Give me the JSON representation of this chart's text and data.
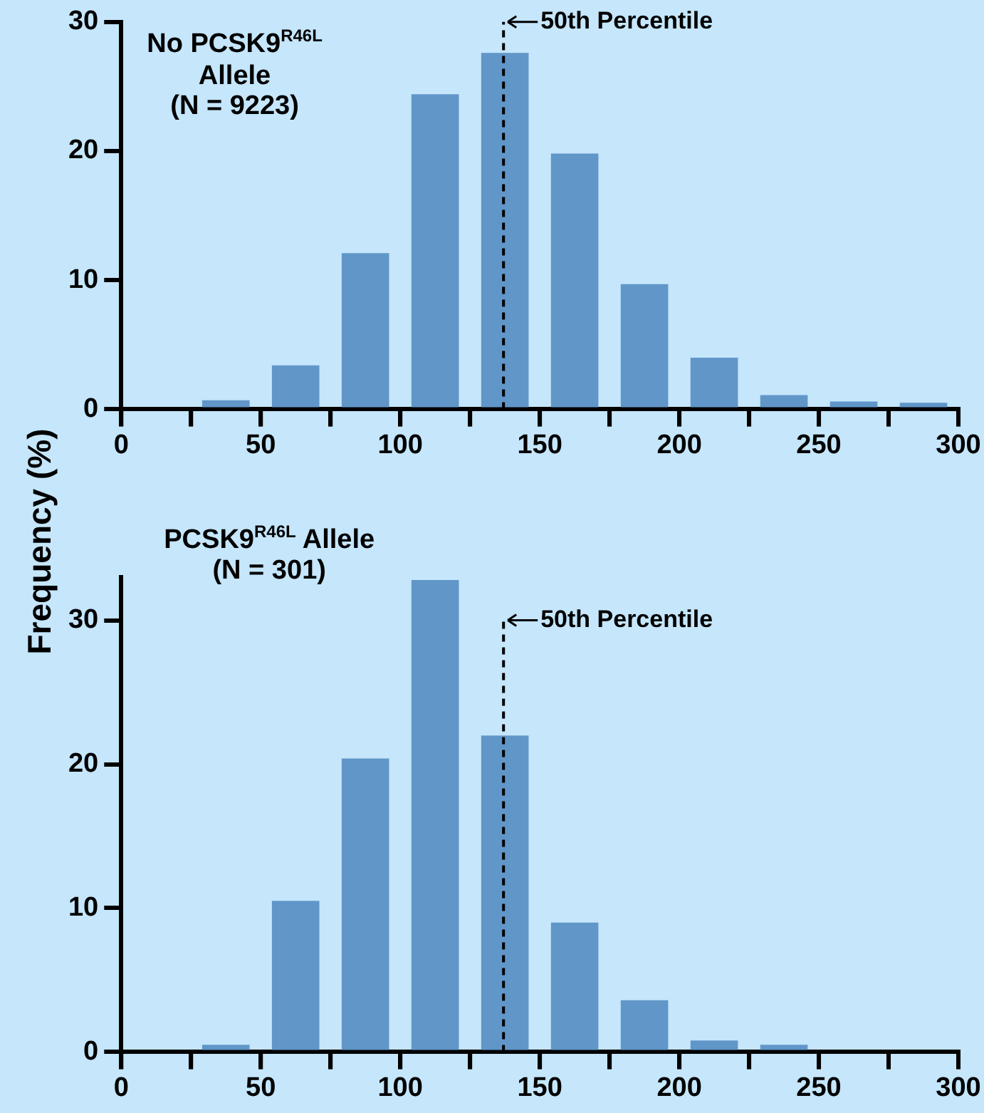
{
  "chart_data": [
    {
      "type": "histogram",
      "title": "No PCSK9$^{R46L}$\nAllele\n(N = 9223)",
      "ylabel": "Frequency (%)",
      "bins": [
        25,
        50,
        75,
        100,
        125,
        150,
        175,
        200,
        225,
        250,
        275,
        300
      ],
      "values": [
        0.7,
        3.4,
        12.1,
        24.4,
        27.6,
        19.8,
        9.7,
        4.0,
        1.1,
        0.6,
        0.5
      ],
      "color": "#6196c9",
      "xlim": [
        0,
        300
      ],
      "xticks": [
        0,
        {
          "value": 25,
          "label": null
        },
        50,
        {
          "value": 75,
          "label": null
        },
        100,
        {
          "value": 125,
          "label": null
        },
        150,
        {
          "value": 175,
          "label": null
        },
        200,
        {
          "value": 225,
          "label": null
        },
        250,
        {
          "value": 275,
          "label": null
        },
        300
      ],
      "ylim": [
        0,
        30
      ],
      "yticks": [
        0,
        10,
        20,
        30
      ],
      "grid": false,
      "legend": false,
      "ref_lines": [
        {
          "axis": "x",
          "value": 137,
          "label": "50th Percentile",
          "line_style": "dashed"
        }
      ]
    },
    {
      "type": "histogram",
      "title": "PCSK9$^{R46L}$ Allele\n(N = 301)",
      "bins": [
        25,
        50,
        75,
        100,
        125,
        150,
        175,
        200,
        225,
        250
      ],
      "values": [
        0.5,
        10.5,
        20.4,
        32.8,
        22.0,
        9.0,
        3.6,
        0.8,
        0.5
      ],
      "color": "#6196c9",
      "xlim": [
        0,
        300
      ],
      "xticks": [
        0,
        {
          "value": 25,
          "label": null
        },
        50,
        {
          "value": 75,
          "label": null
        },
        100,
        {
          "value": 125,
          "label": null
        },
        150,
        {
          "value": 175,
          "label": null
        },
        200,
        {
          "value": 225,
          "label": null
        },
        250,
        {
          "value": 275,
          "label": null
        },
        300
      ],
      "ylim": [
        0,
        33
      ],
      "yticks": [
        0,
        10,
        20,
        30
      ],
      "grid": false,
      "legend": false,
      "ref_lines": [
        {
          "axis": "x",
          "value": 137,
          "label": "50th Percentile",
          "line_style": "dashed"
        }
      ]
    }
  ]
}
